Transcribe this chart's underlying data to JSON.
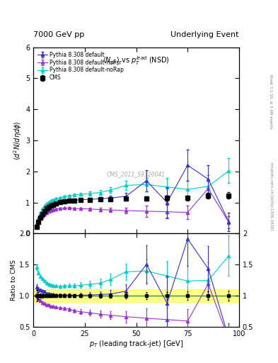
{
  "title_left": "7000 GeV pp",
  "title_right": "Underlying Event",
  "plot_title": "<N_{ch}> vs p_{T}^{lead} (NSD)",
  "right_label_top": "Rivet 3.1.10, ≥ 3.4M events",
  "right_label_bot": "mcplots.cern.ch [arXiv:1306.3436]",
  "watermark": "CMS_2011_S9120041",
  "cms_x": [
    1.5,
    2.5,
    3.5,
    4.5,
    5.5,
    6.5,
    7.5,
    8.5,
    9.5,
    11.0,
    13.0,
    15.0,
    17.5,
    20.0,
    23.0,
    27.5,
    32.5,
    37.5,
    45.0,
    55.0,
    65.0,
    75.0,
    85.0,
    95.0
  ],
  "cms_y": [
    0.22,
    0.38,
    0.52,
    0.63,
    0.72,
    0.8,
    0.85,
    0.9,
    0.93,
    0.97,
    1.01,
    1.03,
    1.05,
    1.07,
    1.08,
    1.09,
    1.1,
    1.11,
    1.12,
    1.13,
    1.14,
    1.15,
    1.22,
    1.23
  ],
  "cms_yerr": [
    0.02,
    0.02,
    0.02,
    0.02,
    0.02,
    0.02,
    0.02,
    0.02,
    0.02,
    0.02,
    0.02,
    0.02,
    0.03,
    0.03,
    0.03,
    0.03,
    0.04,
    0.04,
    0.05,
    0.06,
    0.07,
    0.08,
    0.09,
    0.1
  ],
  "py_default_x": [
    1.5,
    2.5,
    3.5,
    4.5,
    5.5,
    6.5,
    7.5,
    8.5,
    9.5,
    11.0,
    13.0,
    15.0,
    17.5,
    20.0,
    23.0,
    27.5,
    32.5,
    37.5,
    45.0,
    55.0,
    65.0,
    75.0,
    85.0,
    95.0
  ],
  "py_default_y": [
    0.25,
    0.42,
    0.57,
    0.68,
    0.77,
    0.83,
    0.88,
    0.92,
    0.95,
    0.98,
    1.02,
    1.04,
    1.06,
    1.07,
    1.09,
    1.1,
    1.12,
    1.14,
    1.2,
    1.7,
    1.0,
    2.2,
    1.75,
    0.38
  ],
  "py_default_yerr": [
    0.01,
    0.01,
    0.01,
    0.01,
    0.01,
    0.01,
    0.01,
    0.01,
    0.01,
    0.01,
    0.02,
    0.02,
    0.03,
    0.03,
    0.04,
    0.05,
    0.06,
    0.07,
    0.12,
    0.35,
    0.5,
    0.5,
    0.45,
    0.3
  ],
  "py_noFsr_x": [
    1.5,
    2.5,
    3.5,
    4.5,
    5.5,
    6.5,
    7.5,
    8.5,
    9.5,
    11.0,
    13.0,
    15.0,
    17.5,
    20.0,
    23.0,
    27.5,
    32.5,
    37.5,
    45.0,
    55.0,
    65.0,
    75.0,
    85.0,
    95.0
  ],
  "py_noFsr_y": [
    0.22,
    0.36,
    0.48,
    0.56,
    0.63,
    0.68,
    0.72,
    0.75,
    0.77,
    0.79,
    0.81,
    0.82,
    0.82,
    0.81,
    0.8,
    0.79,
    0.77,
    0.76,
    0.74,
    0.72,
    0.7,
    0.68,
    1.45,
    0.36
  ],
  "py_noFsr_yerr": [
    0.01,
    0.01,
    0.01,
    0.01,
    0.01,
    0.01,
    0.01,
    0.01,
    0.01,
    0.01,
    0.02,
    0.02,
    0.03,
    0.03,
    0.04,
    0.05,
    0.06,
    0.07,
    0.1,
    0.18,
    0.22,
    0.22,
    0.3,
    0.2
  ],
  "py_noRap_x": [
    1.5,
    2.5,
    3.5,
    4.5,
    5.5,
    6.5,
    7.5,
    8.5,
    9.5,
    11.0,
    13.0,
    15.0,
    17.5,
    20.0,
    23.0,
    27.5,
    32.5,
    37.5,
    45.0,
    55.0,
    65.0,
    75.0,
    85.0,
    95.0
  ],
  "py_noRap_y": [
    0.32,
    0.52,
    0.68,
    0.8,
    0.89,
    0.96,
    1.01,
    1.05,
    1.08,
    1.12,
    1.16,
    1.19,
    1.22,
    1.24,
    1.26,
    1.29,
    1.32,
    1.4,
    1.55,
    1.58,
    1.5,
    1.42,
    1.52,
    2.02
  ],
  "py_noRap_yerr": [
    0.01,
    0.01,
    0.01,
    0.01,
    0.01,
    0.01,
    0.01,
    0.01,
    0.02,
    0.02,
    0.02,
    0.03,
    0.03,
    0.04,
    0.05,
    0.06,
    0.08,
    0.1,
    0.15,
    0.22,
    0.28,
    0.28,
    0.35,
    0.4
  ],
  "color_cms": "#000000",
  "color_default": "#3333cc",
  "color_noFsr": "#9933cc",
  "color_noRap": "#00cccc",
  "ylim_main": [
    0,
    6
  ],
  "ylim_ratio": [
    0.5,
    2.0
  ],
  "xlim": [
    0,
    100
  ],
  "yticks_main": [
    0,
    1,
    2,
    3,
    4,
    5,
    6
  ],
  "yticks_ratio": [
    0.5,
    1.0,
    1.5,
    2.0
  ],
  "xticks": [
    0,
    25,
    50,
    75,
    100
  ]
}
